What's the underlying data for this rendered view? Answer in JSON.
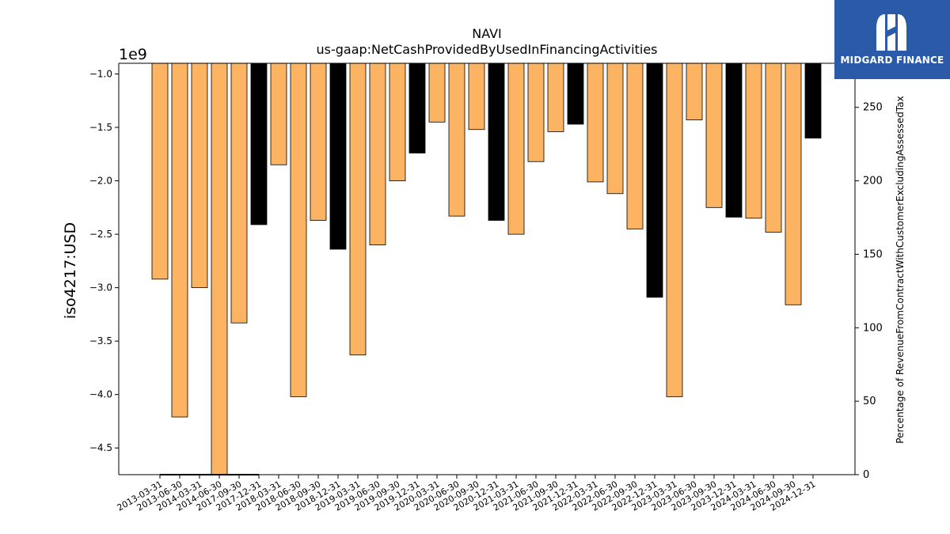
{
  "chart_data": {
    "type": "bar",
    "title": "NAVI",
    "subtitle": "us-gaap:NetCashProvidedByUsedInFinancingActivities",
    "ylabel": "iso4217:USD",
    "y_offset_label": "1e9",
    "y2label": "Percentage of RevenueFromContractWithCustomerExcludingAssessedTax",
    "ylim": [
      -4.75,
      -0.9
    ],
    "yticks": [
      "-1.0",
      "-1.5",
      "-2.0",
      "-2.5",
      "-3.0",
      "-3.5",
      "-4.0",
      "-4.5"
    ],
    "y2lim": [
      0,
      280
    ],
    "y2ticks": [
      "0",
      "50",
      "100",
      "150",
      "200",
      "250"
    ],
    "colors": {
      "annual": "#000000",
      "quarterly": "#fdb462"
    },
    "categories": [
      "2013-03-31",
      "2013-06-30",
      "2014-03-31",
      "2014-06-30",
      "2017-09-30",
      "2017-12-31",
      "2018-03-31",
      "2018-06-30",
      "2018-09-30",
      "2018-12-31",
      "2019-03-31",
      "2019-06-30",
      "2019-09-30",
      "2019-12-31",
      "2020-03-31",
      "2020-06-30",
      "2020-09-30",
      "2020-12-31",
      "2021-03-31",
      "2021-06-30",
      "2021-09-30",
      "2021-12-31",
      "2022-03-31",
      "2022-06-30",
      "2022-09-30",
      "2022-12-31",
      "2023-03-31",
      "2023-06-30",
      "2023-09-30",
      "2023-12-31",
      "2024-03-31",
      "2024-06-30",
      "2024-09-30",
      "2024-12-31"
    ],
    "values": [
      -2.92,
      -4.21,
      -3.0,
      -4.75,
      -3.33,
      -2.41,
      -1.85,
      -4.02,
      -2.37,
      -2.64,
      -3.63,
      -2.6,
      -2.0,
      -1.74,
      -1.45,
      -2.33,
      -1.52,
      -2.37,
      -2.5,
      -1.82,
      -1.54,
      -1.47,
      -2.01,
      -2.12,
      -2.45,
      -3.09,
      -4.02,
      -1.43,
      -2.25,
      -2.34,
      -2.35,
      -2.48,
      -3.16,
      -1.6
    ],
    "is_annual": [
      false,
      false,
      false,
      false,
      false,
      true,
      false,
      false,
      false,
      true,
      false,
      false,
      false,
      true,
      false,
      false,
      false,
      true,
      false,
      false,
      false,
      true,
      false,
      false,
      false,
      true,
      false,
      false,
      false,
      true,
      false,
      false,
      false,
      true
    ],
    "pct_line_values": [
      0,
      0,
      0,
      0,
      0,
      0
    ]
  },
  "logo": {
    "text": "MIDGARD FINANCE"
  }
}
